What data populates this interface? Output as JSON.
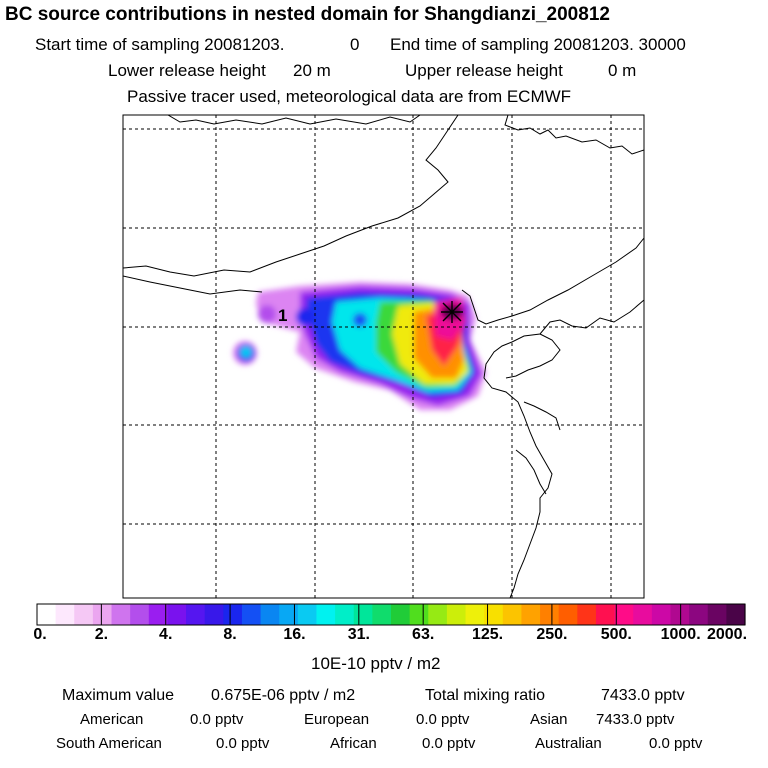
{
  "chart_data": {
    "type": "heatmap",
    "title": "BC  source contributions in nested domain for Shangdianzi_200812",
    "header_lines": {
      "start_label": "Start time of sampling 20081203.",
      "start_hour": "0",
      "end_label": "End time of sampling 20081203. 30000",
      "lower_label": "Lower release height",
      "lower_value": "20 m",
      "upper_label": "Upper release height",
      "upper_value": "0 m",
      "tracer_note": "Passive tracer used, meteorological data are from ECMWF"
    },
    "site_label": "1",
    "colorbar": {
      "ticks": [
        "0.",
        "2.",
        "4.",
        "8.",
        "16.",
        "31.",
        "63.",
        "125.",
        "250.",
        "500.",
        "1000.",
        "2000."
      ],
      "unit": "10E-10 pptv / m2",
      "colors": [
        "#ffffff",
        "#fde8fd",
        "#f5c8f5",
        "#eba6f0",
        "#cf74ee",
        "#b34eec",
        "#9a1ef0",
        "#7a12ee",
        "#5516f0",
        "#3818ea",
        "#1a26ee",
        "#1450f4",
        "#0a86f2",
        "#08a8f4",
        "#0acaf2",
        "#00f2f0",
        "#00eec8",
        "#00e69a",
        "#10dc6c",
        "#20cc38",
        "#50de1e",
        "#96ea14",
        "#ccee0a",
        "#eef00a",
        "#f8e000",
        "#fcc400",
        "#ffa200",
        "#ff8000",
        "#ff5e00",
        "#ff3418",
        "#ff1050",
        "#ff0c88",
        "#e80c9e",
        "#cc08a6",
        "#b00890",
        "#8c0680",
        "#6a0462",
        "#4a0448"
      ]
    },
    "stats": {
      "max_label": "Maximum value",
      "max_value": "0.675E-06 pptv / m2",
      "total_label": "Total mixing ratio",
      "total_value": "7433.0 pptv"
    },
    "regions": [
      {
        "name": "American",
        "value": "0.0 pptv"
      },
      {
        "name": "European",
        "value": "0.0 pptv"
      },
      {
        "name": "Asian",
        "value": "7433.0 pptv"
      },
      {
        "name": "South American",
        "value": "0.0 pptv"
      },
      {
        "name": "African",
        "value": "0.0 pptv"
      },
      {
        "name": "Australian",
        "value": "0.0 pptv"
      }
    ]
  }
}
